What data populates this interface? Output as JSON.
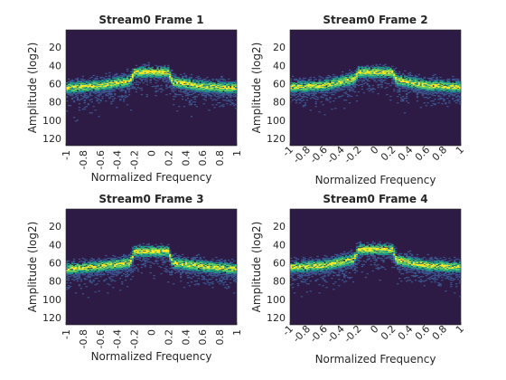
{
  "chart_data": [
    {
      "type": "heatmap",
      "title": "Stream0 Frame 1",
      "xlabel": "Normalized Frequency",
      "ylabel": "Amplitude (log2)",
      "xlim": [
        -1,
        1
      ],
      "ylim": [
        128,
        1
      ],
      "y_direction": "reversed (top = low amplitude values)",
      "x_ticks": [
        "-1",
        "-0.8",
        "-0.6",
        "-0.4",
        "-0.2",
        "0",
        "0.2",
        "0.4",
        "0.6",
        "0.8",
        "1"
      ],
      "x_tick_rotation": -90,
      "y_ticks": [
        "20",
        "40",
        "60",
        "80",
        "100",
        "120"
      ],
      "background_color": "#2e1b45",
      "colormap": [
        "#2e1b45",
        "#3b528b",
        "#21918c",
        "#5ec962",
        "#fde725"
      ],
      "profile": [
        {
          "x": -1,
          "y": 65
        },
        {
          "x": -0.6,
          "y": 62
        },
        {
          "x": -0.25,
          "y": 57
        },
        {
          "x": -0.2,
          "y": 48
        },
        {
          "x": 0,
          "y": 47
        },
        {
          "x": 0.2,
          "y": 48
        },
        {
          "x": 0.25,
          "y": 58
        },
        {
          "x": 0.6,
          "y": 63
        },
        {
          "x": 1,
          "y": 65
        }
      ]
    },
    {
      "type": "heatmap",
      "title": "Stream0 Frame 2",
      "xlabel": "Normalized Frequency",
      "ylabel": "Amplitude (log2)",
      "xlim": [
        -1,
        1
      ],
      "ylim": [
        128,
        1
      ],
      "y_direction": "reversed (top = low amplitude values)",
      "x_ticks": [
        "-1",
        "-0.8",
        "-0.6",
        "-0.4",
        "-0.2",
        "0",
        "0.2",
        "0.4",
        "0.6",
        "0.8",
        "1"
      ],
      "x_tick_rotation": -45,
      "y_ticks": [
        "20",
        "40",
        "60",
        "80",
        "100",
        "120"
      ],
      "background_color": "#2e1b45",
      "colormap": [
        "#2e1b45",
        "#3b528b",
        "#21918c",
        "#5ec962",
        "#fde725"
      ],
      "profile": [
        {
          "x": -1,
          "y": 64
        },
        {
          "x": -0.6,
          "y": 62
        },
        {
          "x": -0.25,
          "y": 55
        },
        {
          "x": -0.2,
          "y": 48
        },
        {
          "x": 0,
          "y": 47
        },
        {
          "x": 0.2,
          "y": 48
        },
        {
          "x": 0.25,
          "y": 56
        },
        {
          "x": 0.6,
          "y": 62
        },
        {
          "x": 1,
          "y": 64
        }
      ]
    },
    {
      "type": "heatmap",
      "title": "Stream0 Frame 3",
      "xlabel": "Normalized Frequency",
      "ylabel": "Amplitude (log2)",
      "xlim": [
        -1,
        1
      ],
      "ylim": [
        128,
        1
      ],
      "y_direction": "reversed (top = low amplitude values)",
      "x_ticks": [
        "-1",
        "-0.8",
        "-0.6",
        "-0.4",
        "-0.2",
        "0",
        "0.2",
        "0.4",
        "0.6",
        "0.8",
        "1"
      ],
      "x_tick_rotation": -90,
      "y_ticks": [
        "20",
        "40",
        "60",
        "80",
        "100",
        "120"
      ],
      "background_color": "#2e1b45",
      "colormap": [
        "#2e1b45",
        "#3b528b",
        "#21918c",
        "#5ec962",
        "#fde725"
      ],
      "profile": [
        {
          "x": -1,
          "y": 67
        },
        {
          "x": -0.6,
          "y": 64
        },
        {
          "x": -0.25,
          "y": 60
        },
        {
          "x": -0.2,
          "y": 48
        },
        {
          "x": 0,
          "y": 47
        },
        {
          "x": 0.2,
          "y": 48
        },
        {
          "x": 0.25,
          "y": 60
        },
        {
          "x": 0.6,
          "y": 64
        },
        {
          "x": 1,
          "y": 67
        }
      ]
    },
    {
      "type": "heatmap",
      "title": "Stream0 Frame 4",
      "xlabel": "Normalized Frequency",
      "ylabel": "Amplitude (log2)",
      "xlim": [
        -1,
        1
      ],
      "ylim": [
        128,
        1
      ],
      "y_direction": "reversed (top = low amplitude values)",
      "x_ticks": [
        "-1",
        "-0.8",
        "-0.6",
        "-0.4",
        "-0.2",
        "0",
        "0.2",
        "0.4",
        "0.6",
        "0.8",
        "1"
      ],
      "x_tick_rotation": -45,
      "y_ticks": [
        "20",
        "40",
        "60",
        "80",
        "100",
        "120"
      ],
      "background_color": "#2e1b45",
      "colormap": [
        "#2e1b45",
        "#3b528b",
        "#21918c",
        "#5ec962",
        "#fde725"
      ],
      "profile": [
        {
          "x": -1,
          "y": 65
        },
        {
          "x": -0.6,
          "y": 63
        },
        {
          "x": -0.25,
          "y": 56
        },
        {
          "x": -0.2,
          "y": 46
        },
        {
          "x": 0,
          "y": 45
        },
        {
          "x": 0.2,
          "y": 46
        },
        {
          "x": 0.25,
          "y": 57
        },
        {
          "x": 0.6,
          "y": 63
        },
        {
          "x": 1,
          "y": 65
        }
      ]
    }
  ]
}
